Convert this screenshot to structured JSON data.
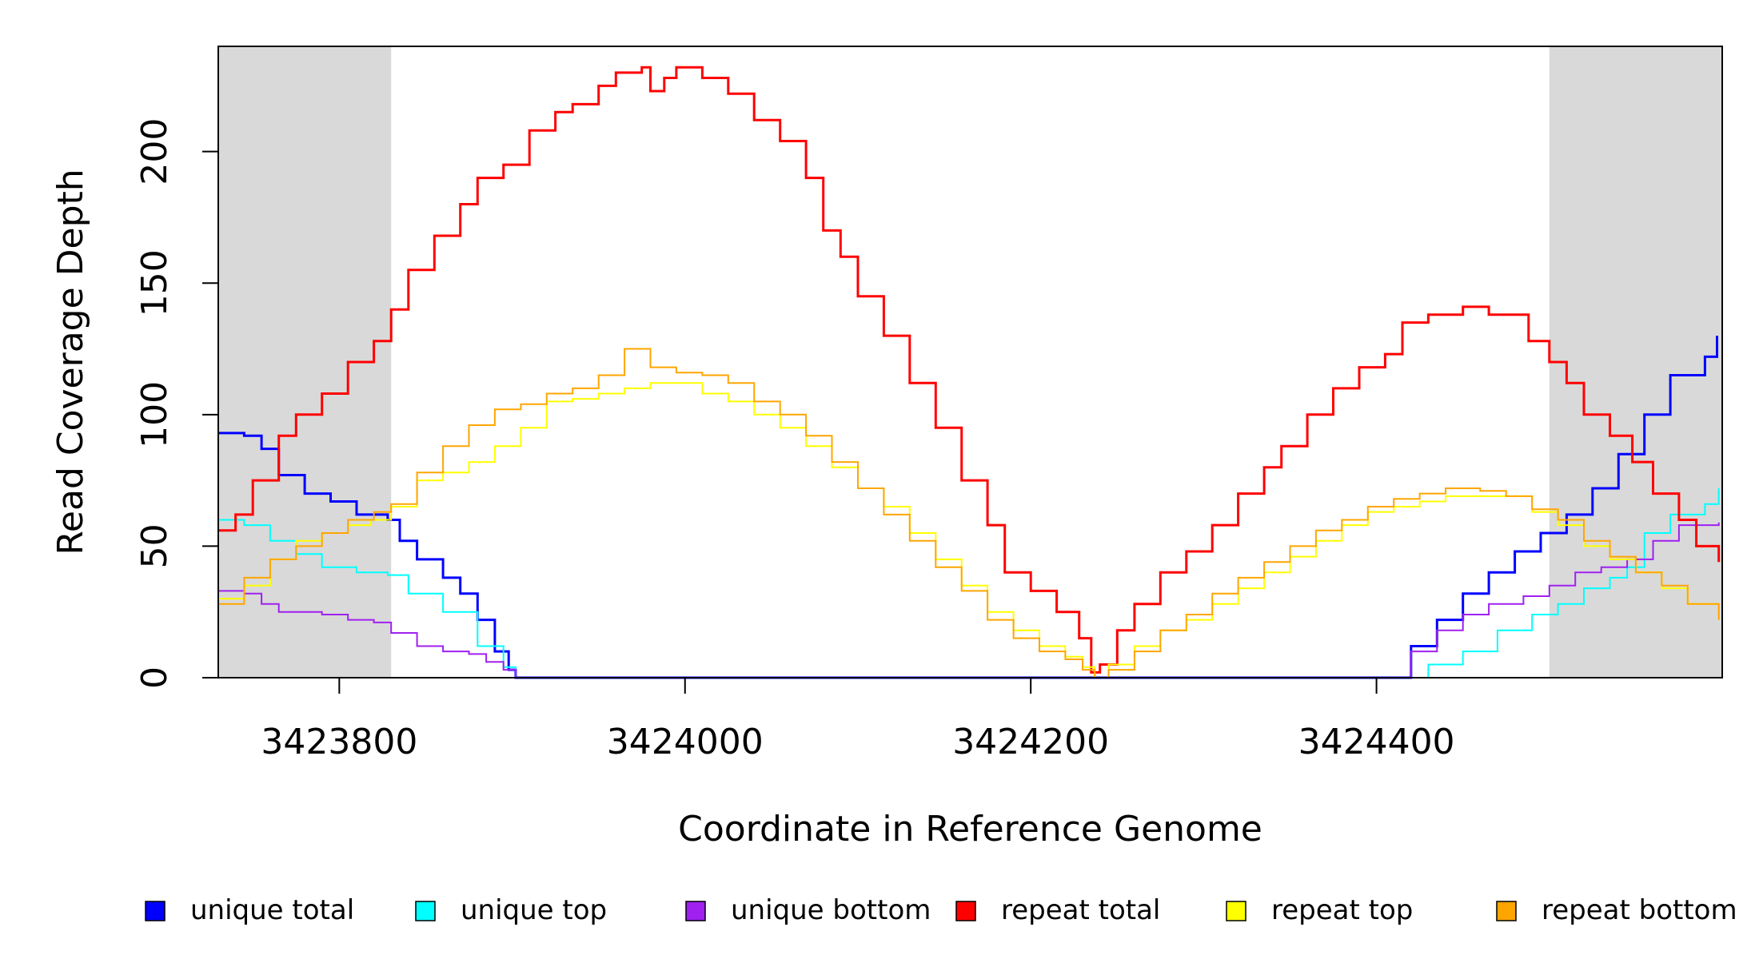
{
  "chart_data": {
    "type": "line",
    "title": "",
    "xlabel": "Coordinate in Reference Genome",
    "ylabel": "Read Coverage Depth",
    "xlim": [
      3423730,
      3424600
    ],
    "ylim": [
      0,
      240
    ],
    "xticks": [
      3423800,
      3424000,
      3424200,
      3424400
    ],
    "yticks": [
      0,
      50,
      100,
      150,
      200
    ],
    "shaded_regions": [
      {
        "x_start": 3423730,
        "x_end": 3423830,
        "color": "#d9d9d9"
      },
      {
        "x_start": 3424500,
        "x_end": 3424600,
        "color": "#d9d9d9"
      }
    ],
    "legend_position": "bottom",
    "series": [
      {
        "name": "unique total",
        "color": "#0000ff",
        "width": 3,
        "points": [
          [
            3423730,
            93
          ],
          [
            3423745,
            92
          ],
          [
            3423755,
            87
          ],
          [
            3423765,
            77
          ],
          [
            3423780,
            70
          ],
          [
            3423795,
            67
          ],
          [
            3423810,
            62
          ],
          [
            3423820,
            62
          ],
          [
            3423828,
            60
          ],
          [
            3423835,
            52
          ],
          [
            3423845,
            45
          ],
          [
            3423860,
            38
          ],
          [
            3423870,
            32
          ],
          [
            3423880,
            22
          ],
          [
            3423890,
            10
          ],
          [
            3423898,
            3
          ],
          [
            3423902,
            0
          ],
          [
            3424410,
            0
          ],
          [
            3424420,
            12
          ],
          [
            3424435,
            22
          ],
          [
            3424450,
            32
          ],
          [
            3424465,
            40
          ],
          [
            3424480,
            48
          ],
          [
            3424495,
            55
          ],
          [
            3424510,
            62
          ],
          [
            3424525,
            72
          ],
          [
            3424540,
            85
          ],
          [
            3424555,
            100
          ],
          [
            3424570,
            115
          ],
          [
            3424590,
            122
          ],
          [
            3424597,
            130
          ]
        ]
      },
      {
        "name": "unique top",
        "color": "#00ffff",
        "width": 2,
        "points": [
          [
            3423730,
            60
          ],
          [
            3423745,
            58
          ],
          [
            3423760,
            52
          ],
          [
            3423775,
            47
          ],
          [
            3423790,
            42
          ],
          [
            3423810,
            40
          ],
          [
            3423828,
            39
          ],
          [
            3423840,
            32
          ],
          [
            3423860,
            25
          ],
          [
            3423880,
            12
          ],
          [
            3423895,
            4
          ],
          [
            3423902,
            0
          ],
          [
            3424410,
            0
          ],
          [
            3424430,
            5
          ],
          [
            3424450,
            10
          ],
          [
            3424470,
            18
          ],
          [
            3424490,
            24
          ],
          [
            3424505,
            28
          ],
          [
            3424520,
            34
          ],
          [
            3424535,
            38
          ],
          [
            3424545,
            42
          ],
          [
            3424555,
            55
          ],
          [
            3424570,
            62
          ],
          [
            3424590,
            66
          ],
          [
            3424598,
            72
          ]
        ]
      },
      {
        "name": "unique bottom",
        "color": "#a020f0",
        "width": 2,
        "points": [
          [
            3423730,
            33
          ],
          [
            3423745,
            32
          ],
          [
            3423755,
            28
          ],
          [
            3423765,
            25
          ],
          [
            3423790,
            24
          ],
          [
            3423805,
            22
          ],
          [
            3423820,
            21
          ],
          [
            3423830,
            17
          ],
          [
            3423845,
            12
          ],
          [
            3423860,
            10
          ],
          [
            3423875,
            9
          ],
          [
            3423885,
            6
          ],
          [
            3423895,
            3
          ],
          [
            3423902,
            0
          ],
          [
            3424410,
            0
          ],
          [
            3424420,
            10
          ],
          [
            3424435,
            18
          ],
          [
            3424450,
            24
          ],
          [
            3424465,
            28
          ],
          [
            3424485,
            31
          ],
          [
            3424500,
            35
          ],
          [
            3424515,
            40
          ],
          [
            3424530,
            42
          ],
          [
            3424545,
            45
          ],
          [
            3424560,
            52
          ],
          [
            3424575,
            58
          ],
          [
            3424598,
            59
          ]
        ]
      },
      {
        "name": "repeat total",
        "color": "#ff0000",
        "width": 3,
        "points": [
          [
            3423730,
            56
          ],
          [
            3423740,
            62
          ],
          [
            3423750,
            75
          ],
          [
            3423765,
            92
          ],
          [
            3423775,
            100
          ],
          [
            3423790,
            108
          ],
          [
            3423805,
            120
          ],
          [
            3423820,
            128
          ],
          [
            3423830,
            140
          ],
          [
            3423840,
            155
          ],
          [
            3423855,
            168
          ],
          [
            3423870,
            180
          ],
          [
            3423880,
            190
          ],
          [
            3423895,
            195
          ],
          [
            3423910,
            208
          ],
          [
            3423925,
            215
          ],
          [
            3423935,
            218
          ],
          [
            3423950,
            225
          ],
          [
            3423960,
            230
          ],
          [
            3423975,
            232
          ],
          [
            3423980,
            223
          ],
          [
            3423988,
            228
          ],
          [
            3423995,
            232
          ],
          [
            3424010,
            228
          ],
          [
            3424025,
            222
          ],
          [
            3424040,
            212
          ],
          [
            3424055,
            204
          ],
          [
            3424070,
            190
          ],
          [
            3424080,
            170
          ],
          [
            3424090,
            160
          ],
          [
            3424100,
            145
          ],
          [
            3424115,
            130
          ],
          [
            3424130,
            112
          ],
          [
            3424145,
            95
          ],
          [
            3424160,
            75
          ],
          [
            3424175,
            58
          ],
          [
            3424185,
            40
          ],
          [
            3424200,
            33
          ],
          [
            3424215,
            25
          ],
          [
            3424228,
            15
          ],
          [
            3424235,
            2
          ],
          [
            3424240,
            5
          ],
          [
            3424250,
            18
          ],
          [
            3424260,
            28
          ],
          [
            3424275,
            40
          ],
          [
            3424290,
            48
          ],
          [
            3424305,
            58
          ],
          [
            3424320,
            70
          ],
          [
            3424335,
            80
          ],
          [
            3424345,
            88
          ],
          [
            3424360,
            100
          ],
          [
            3424375,
            110
          ],
          [
            3424390,
            118
          ],
          [
            3424405,
            123
          ],
          [
            3424415,
            135
          ],
          [
            3424430,
            138
          ],
          [
            3424450,
            141
          ],
          [
            3424465,
            138
          ],
          [
            3424478,
            138
          ],
          [
            3424488,
            128
          ],
          [
            3424500,
            120
          ],
          [
            3424510,
            112
          ],
          [
            3424520,
            100
          ],
          [
            3424535,
            92
          ],
          [
            3424548,
            82
          ],
          [
            3424560,
            70
          ],
          [
            3424575,
            60
          ],
          [
            3424585,
            50
          ],
          [
            3424598,
            44
          ]
        ]
      },
      {
        "name": "repeat top",
        "color": "#ffff00",
        "width": 2,
        "points": [
          [
            3423730,
            30
          ],
          [
            3423745,
            35
          ],
          [
            3423760,
            45
          ],
          [
            3423775,
            52
          ],
          [
            3423790,
            55
          ],
          [
            3423805,
            58
          ],
          [
            3423818,
            60
          ],
          [
            3423830,
            65
          ],
          [
            3423845,
            75
          ],
          [
            3423860,
            78
          ],
          [
            3423875,
            82
          ],
          [
            3423890,
            88
          ],
          [
            3423905,
            95
          ],
          [
            3423920,
            105
          ],
          [
            3423935,
            106
          ],
          [
            3423950,
            108
          ],
          [
            3423965,
            110
          ],
          [
            3423980,
            112
          ],
          [
            3423995,
            112
          ],
          [
            3424010,
            108
          ],
          [
            3424025,
            105
          ],
          [
            3424040,
            100
          ],
          [
            3424055,
            95
          ],
          [
            3424070,
            88
          ],
          [
            3424085,
            80
          ],
          [
            3424100,
            72
          ],
          [
            3424115,
            65
          ],
          [
            3424130,
            55
          ],
          [
            3424145,
            45
          ],
          [
            3424160,
            35
          ],
          [
            3424175,
            25
          ],
          [
            3424190,
            18
          ],
          [
            3424205,
            12
          ],
          [
            3424220,
            8
          ],
          [
            3424230,
            4
          ],
          [
            3424237,
            0
          ],
          [
            3424245,
            5
          ],
          [
            3424260,
            12
          ],
          [
            3424275,
            18
          ],
          [
            3424290,
            22
          ],
          [
            3424305,
            28
          ],
          [
            3424320,
            34
          ],
          [
            3424335,
            40
          ],
          [
            3424350,
            46
          ],
          [
            3424365,
            52
          ],
          [
            3424380,
            58
          ],
          [
            3424395,
            63
          ],
          [
            3424410,
            65
          ],
          [
            3424425,
            67
          ],
          [
            3424440,
            69
          ],
          [
            3424460,
            69
          ],
          [
            3424475,
            69
          ],
          [
            3424490,
            63
          ],
          [
            3424505,
            58
          ],
          [
            3424520,
            50
          ],
          [
            3424535,
            45
          ],
          [
            3424550,
            40
          ],
          [
            3424565,
            34
          ],
          [
            3424580,
            28
          ],
          [
            3424598,
            22
          ]
        ]
      },
      {
        "name": "repeat bottom",
        "color": "#ffa500",
        "width": 2,
        "points": [
          [
            3423730,
            28
          ],
          [
            3423745,
            38
          ],
          [
            3423760,
            45
          ],
          [
            3423775,
            50
          ],
          [
            3423790,
            55
          ],
          [
            3423805,
            60
          ],
          [
            3423820,
            63
          ],
          [
            3423830,
            66
          ],
          [
            3423845,
            78
          ],
          [
            3423860,
            88
          ],
          [
            3423875,
            96
          ],
          [
            3423890,
            102
          ],
          [
            3423905,
            104
          ],
          [
            3423920,
            108
          ],
          [
            3423935,
            110
          ],
          [
            3423950,
            115
          ],
          [
            3423965,
            125
          ],
          [
            3423980,
            118
          ],
          [
            3423995,
            116
          ],
          [
            3424010,
            115
          ],
          [
            3424025,
            112
          ],
          [
            3424040,
            105
          ],
          [
            3424055,
            100
          ],
          [
            3424070,
            92
          ],
          [
            3424085,
            82
          ],
          [
            3424100,
            72
          ],
          [
            3424115,
            62
          ],
          [
            3424130,
            52
          ],
          [
            3424145,
            42
          ],
          [
            3424160,
            33
          ],
          [
            3424175,
            22
          ],
          [
            3424190,
            15
          ],
          [
            3424205,
            10
          ],
          [
            3424220,
            7
          ],
          [
            3424230,
            3
          ],
          [
            3424237,
            0
          ],
          [
            3424245,
            3
          ],
          [
            3424260,
            10
          ],
          [
            3424275,
            18
          ],
          [
            3424290,
            24
          ],
          [
            3424305,
            32
          ],
          [
            3424320,
            38
          ],
          [
            3424335,
            44
          ],
          [
            3424350,
            50
          ],
          [
            3424365,
            56
          ],
          [
            3424380,
            60
          ],
          [
            3424395,
            65
          ],
          [
            3424410,
            68
          ],
          [
            3424425,
            70
          ],
          [
            3424440,
            72
          ],
          [
            3424460,
            71
          ],
          [
            3424475,
            69
          ],
          [
            3424490,
            64
          ],
          [
            3424505,
            60
          ],
          [
            3424520,
            52
          ],
          [
            3424535,
            46
          ],
          [
            3424550,
            40
          ],
          [
            3424565,
            35
          ],
          [
            3424580,
            28
          ],
          [
            3424598,
            22
          ]
        ]
      }
    ]
  }
}
